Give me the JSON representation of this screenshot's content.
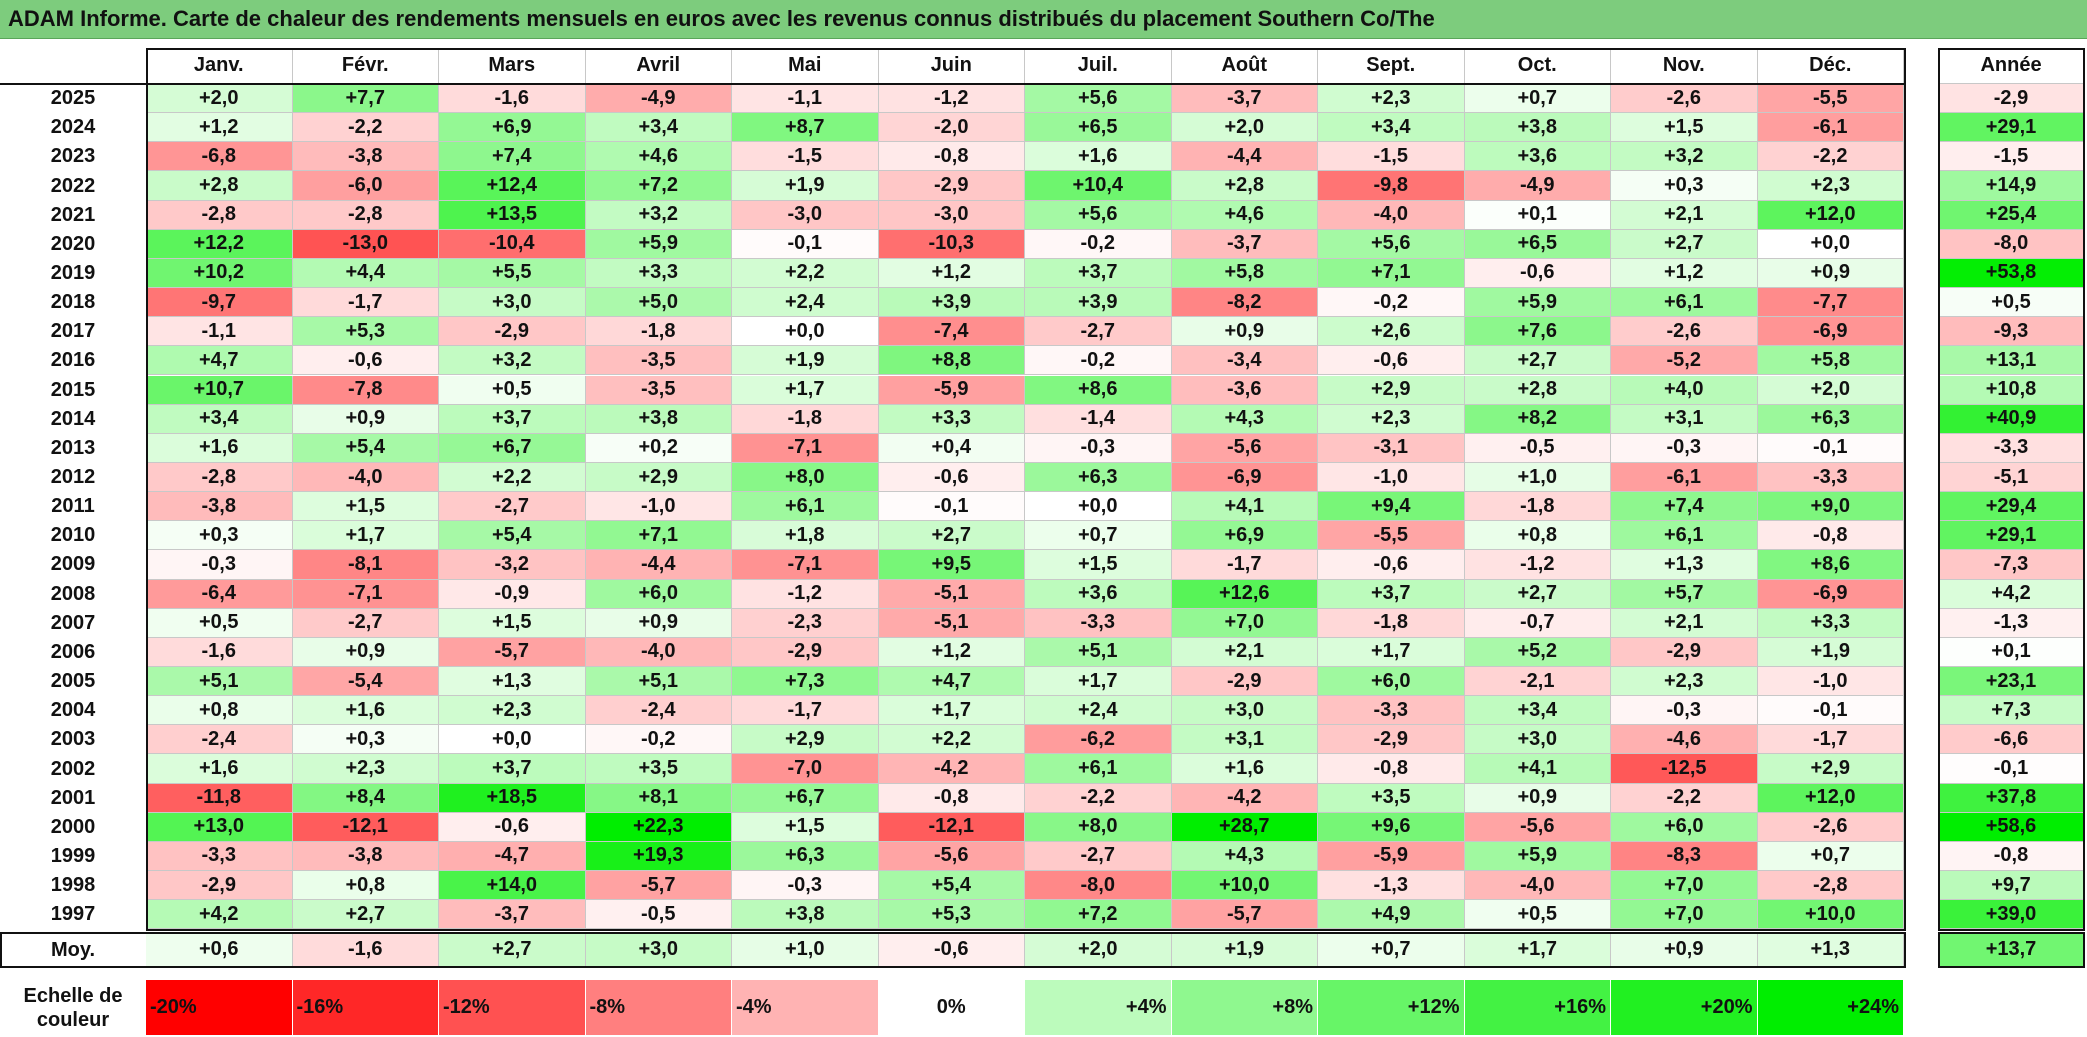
{
  "title": "ADAM Informe. Carte de chaleur des rendements mensuels en euros avec les revenus connus distribués du placement Southern Co/The",
  "chart_data": {
    "type": "heatmap",
    "months": [
      "Janv.",
      "Févr.",
      "Mars",
      "Avril",
      "Mai",
      "Juin",
      "Juil.",
      "Août",
      "Sept.",
      "Oct.",
      "Nov.",
      "Déc."
    ],
    "annual_header": "Année",
    "rows": [
      {
        "year": "2025",
        "values": [
          "+2,0",
          "+7,7",
          "-1,6",
          "-4,9",
          "-1,1",
          "-1,2",
          "+5,6",
          "-3,7",
          "+2,3",
          "+0,7",
          "-2,6",
          "-5,5"
        ],
        "annual": "-2,9"
      },
      {
        "year": "2024",
        "values": [
          "+1,2",
          "-2,2",
          "+6,9",
          "+3,4",
          "+8,7",
          "-2,0",
          "+6,5",
          "+2,0",
          "+3,4",
          "+3,8",
          "+1,5",
          "-6,1"
        ],
        "annual": "+29,1"
      },
      {
        "year": "2023",
        "values": [
          "-6,8",
          "-3,8",
          "+7,4",
          "+4,6",
          "-1,5",
          "-0,8",
          "+1,6",
          "-4,4",
          "-1,5",
          "+3,6",
          "+3,2",
          "-2,2"
        ],
        "annual": "-1,5"
      },
      {
        "year": "2022",
        "values": [
          "+2,8",
          "-6,0",
          "+12,4",
          "+7,2",
          "+1,9",
          "-2,9",
          "+10,4",
          "+2,8",
          "-9,8",
          "-4,9",
          "+0,3",
          "+2,3"
        ],
        "annual": "+14,9"
      },
      {
        "year": "2021",
        "values": [
          "-2,8",
          "-2,8",
          "+13,5",
          "+3,2",
          "-3,0",
          "-3,0",
          "+5,6",
          "+4,6",
          "-4,0",
          "+0,1",
          "+2,1",
          "+12,0"
        ],
        "annual": "+25,4"
      },
      {
        "year": "2020",
        "values": [
          "+12,2",
          "-13,0",
          "-10,4",
          "+5,9",
          "-0,1",
          "-10,3",
          "-0,2",
          "-3,7",
          "+5,6",
          "+6,5",
          "+2,7",
          "+0,0"
        ],
        "annual": "-8,0"
      },
      {
        "year": "2019",
        "values": [
          "+10,2",
          "+4,4",
          "+5,5",
          "+3,3",
          "+2,2",
          "+1,2",
          "+3,7",
          "+5,8",
          "+7,1",
          "-0,6",
          "+1,2",
          "+0,9"
        ],
        "annual": "+53,8"
      },
      {
        "year": "2018",
        "values": [
          "-9,7",
          "-1,7",
          "+3,0",
          "+5,0",
          "+2,4",
          "+3,9",
          "+3,9",
          "-8,2",
          "-0,2",
          "+5,9",
          "+6,1",
          "-7,7"
        ],
        "annual": "+0,5"
      },
      {
        "year": "2017",
        "values": [
          "-1,1",
          "+5,3",
          "-2,9",
          "-1,8",
          "+0,0",
          "-7,4",
          "-2,7",
          "+0,9",
          "+2,6",
          "+7,6",
          "-2,6",
          "-6,9"
        ],
        "annual": "-9,3"
      },
      {
        "year": "2016",
        "values": [
          "+4,7",
          "-0,6",
          "+3,2",
          "-3,5",
          "+1,9",
          "+8,8",
          "-0,2",
          "-3,4",
          "-0,6",
          "+2,7",
          "-5,2",
          "+5,8"
        ],
        "annual": "+13,1"
      },
      {
        "year": "2015",
        "values": [
          "+10,7",
          "-7,8",
          "+0,5",
          "-3,5",
          "+1,7",
          "-5,9",
          "+8,6",
          "-3,6",
          "+2,9",
          "+2,8",
          "+4,0",
          "+2,0"
        ],
        "annual": "+10,8"
      },
      {
        "year": "2014",
        "values": [
          "+3,4",
          "+0,9",
          "+3,7",
          "+3,8",
          "-1,8",
          "+3,3",
          "-1,4",
          "+4,3",
          "+2,3",
          "+8,2",
          "+3,1",
          "+6,3"
        ],
        "annual": "+40,9"
      },
      {
        "year": "2013",
        "values": [
          "+1,6",
          "+5,4",
          "+6,7",
          "+0,2",
          "-7,1",
          "+0,4",
          "-0,3",
          "-5,6",
          "-3,1",
          "-0,5",
          "-0,3",
          "-0,1"
        ],
        "annual": "-3,3"
      },
      {
        "year": "2012",
        "values": [
          "-2,8",
          "-4,0",
          "+2,2",
          "+2,9",
          "+8,0",
          "-0,6",
          "+6,3",
          "-6,9",
          "-1,0",
          "+1,0",
          "-6,1",
          "-3,3"
        ],
        "annual": "-5,1"
      },
      {
        "year": "2011",
        "values": [
          "-3,8",
          "+1,5",
          "-2,7",
          "-1,0",
          "+6,1",
          "-0,1",
          "+0,0",
          "+4,1",
          "+9,4",
          "-1,8",
          "+7,4",
          "+9,0"
        ],
        "annual": "+29,4"
      },
      {
        "year": "2010",
        "values": [
          "+0,3",
          "+1,7",
          "+5,4",
          "+7,1",
          "+1,8",
          "+2,7",
          "+0,7",
          "+6,9",
          "-5,5",
          "+0,8",
          "+6,1",
          "-0,8"
        ],
        "annual": "+29,1"
      },
      {
        "year": "2009",
        "values": [
          "-0,3",
          "-8,1",
          "-3,2",
          "-4,4",
          "-7,1",
          "+9,5",
          "+1,5",
          "-1,7",
          "-0,6",
          "-1,2",
          "+1,3",
          "+8,6"
        ],
        "annual": "-7,3"
      },
      {
        "year": "2008",
        "values": [
          "-6,4",
          "-7,1",
          "-0,9",
          "+6,0",
          "-1,2",
          "-5,1",
          "+3,6",
          "+12,6",
          "+3,7",
          "+2,7",
          "+5,7",
          "-6,9"
        ],
        "annual": "+4,2"
      },
      {
        "year": "2007",
        "values": [
          "+0,5",
          "-2,7",
          "+1,5",
          "+0,9",
          "-2,3",
          "-5,1",
          "-3,3",
          "+7,0",
          "-1,8",
          "-0,7",
          "+2,1",
          "+3,3"
        ],
        "annual": "-1,3"
      },
      {
        "year": "2006",
        "values": [
          "-1,6",
          "+0,9",
          "-5,7",
          "-4,0",
          "-2,9",
          "+1,2",
          "+5,1",
          "+2,1",
          "+1,7",
          "+5,2",
          "-2,9",
          "+1,9"
        ],
        "annual": "+0,1"
      },
      {
        "year": "2005",
        "values": [
          "+5,1",
          "-5,4",
          "+1,3",
          "+5,1",
          "+7,3",
          "+4,7",
          "+1,7",
          "-2,9",
          "+6,0",
          "-2,1",
          "+2,3",
          "-1,0"
        ],
        "annual": "+23,1"
      },
      {
        "year": "2004",
        "values": [
          "+0,8",
          "+1,6",
          "+2,3",
          "-2,4",
          "-1,7",
          "+1,7",
          "+2,4",
          "+3,0",
          "-3,3",
          "+3,4",
          "-0,3",
          "-0,1"
        ],
        "annual": "+7,3"
      },
      {
        "year": "2003",
        "values": [
          "-2,4",
          "+0,3",
          "+0,0",
          "-0,2",
          "+2,9",
          "+2,2",
          "-6,2",
          "+3,1",
          "-2,9",
          "+3,0",
          "-4,6",
          "-1,7"
        ],
        "annual": "-6,6"
      },
      {
        "year": "2002",
        "values": [
          "+1,6",
          "+2,3",
          "+3,7",
          "+3,5",
          "-7,0",
          "-4,2",
          "+6,1",
          "+1,6",
          "-0,8",
          "+4,1",
          "-12,5",
          "+2,9"
        ],
        "annual": "-0,1"
      },
      {
        "year": "2001",
        "values": [
          "-11,8",
          "+8,4",
          "+18,5",
          "+8,1",
          "+6,7",
          "-0,8",
          "-2,2",
          "-4,2",
          "+3,5",
          "+0,9",
          "-2,2",
          "+12,0"
        ],
        "annual": "+37,8"
      },
      {
        "year": "2000",
        "values": [
          "+13,0",
          "-12,1",
          "-0,6",
          "+22,3",
          "+1,5",
          "-12,1",
          "+8,0",
          "+28,7",
          "+9,6",
          "-5,6",
          "+6,0",
          "-2,6"
        ],
        "annual": "+58,6"
      },
      {
        "year": "1999",
        "values": [
          "-3,3",
          "-3,8",
          "-4,7",
          "+19,3",
          "+6,3",
          "-5,6",
          "-2,7",
          "+4,3",
          "-5,9",
          "+5,9",
          "-8,3",
          "+0,7"
        ],
        "annual": "-0,8"
      },
      {
        "year": "1998",
        "values": [
          "-2,9",
          "+0,8",
          "+14,0",
          "-5,7",
          "-0,3",
          "+5,4",
          "-8,0",
          "+10,0",
          "-1,3",
          "-4,0",
          "+7,0",
          "-2,8"
        ],
        "annual": "+9,7"
      },
      {
        "year": "1997",
        "values": [
          "+4,2",
          "+2,7",
          "-3,7",
          "-0,5",
          "+3,8",
          "+5,3",
          "+7,2",
          "-5,7",
          "+4,9",
          "+0,5",
          "+7,0",
          "+10,0"
        ],
        "annual": "+39,0"
      }
    ],
    "average": {
      "label": "Moy.",
      "values": [
        "+0,6",
        "-1,6",
        "+2,7",
        "+3,0",
        "+1,0",
        "-0,6",
        "+2,0",
        "+1,9",
        "+0,7",
        "+1,7",
        "+0,9",
        "+1,3"
      ],
      "annual": "+13,7"
    },
    "scale": {
      "label": "Echelle de couleur",
      "steps": [
        {
          "text": "-20%",
          "value": -20,
          "align": "left"
        },
        {
          "text": "-16%",
          "value": -16,
          "align": "left"
        },
        {
          "text": "-12%",
          "value": -12,
          "align": "left"
        },
        {
          "text": "-8%",
          "value": -8,
          "align": "left"
        },
        {
          "text": "-4%",
          "value": -4,
          "align": "left"
        },
        {
          "text": "0%",
          "value": 0,
          "align": "center"
        },
        {
          "text": "+4%",
          "value": 4,
          "align": "right"
        },
        {
          "text": "+8%",
          "value": 8,
          "align": "right"
        },
        {
          "text": "+12%",
          "value": 12,
          "align": "right"
        },
        {
          "text": "+16%",
          "value": 16,
          "align": "right"
        },
        {
          "text": "+20%",
          "value": 20,
          "align": "right"
        },
        {
          "text": "+24%",
          "value": 24,
          "align": "right"
        }
      ]
    },
    "colors": {
      "negative_max": "#ff0000",
      "neutral": "#ffffff",
      "positive_max": "#00ee00"
    }
  }
}
